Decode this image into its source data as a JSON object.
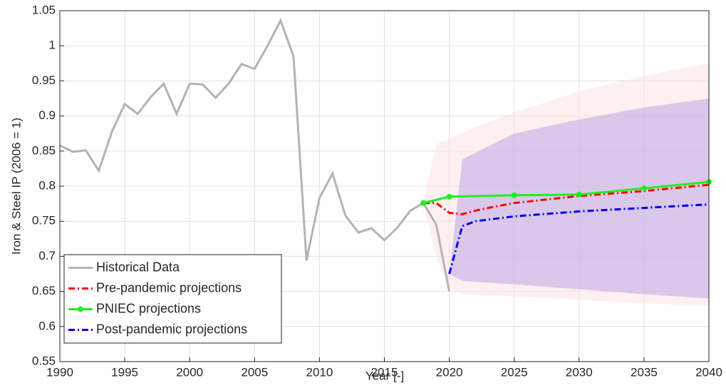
{
  "chart_data": {
    "type": "line",
    "x_label": "Year [-]",
    "y_label": "Iron & Steel IP (2006 = 1)",
    "xlim": [
      1990,
      2040
    ],
    "xticks": [
      1990,
      1995,
      2000,
      2005,
      2010,
      2015,
      2020,
      2025,
      2030,
      2035,
      2040
    ],
    "ylim": [
      0.55,
      1.05
    ],
    "yticks": [
      0.55,
      0.6,
      0.65,
      0.7,
      0.75,
      0.8,
      0.85,
      0.9,
      0.95,
      1,
      1.05
    ],
    "grid": true,
    "legend_position": "lower-left",
    "bands": [
      {
        "color": "#fde3e3",
        "x": [
          2018,
          2019,
          2020,
          2021,
          2025,
          2030,
          2035,
          2040
        ],
        "upper": [
          0.776,
          0.86,
          0.868,
          0.876,
          0.905,
          0.935,
          0.957,
          0.975
        ],
        "lower": [
          0.776,
          0.7,
          0.655,
          0.646,
          0.643,
          0.638,
          0.633,
          0.63
        ]
      },
      {
        "color": "#b9a8e6",
        "x": [
          2020,
          2021,
          2025,
          2030,
          2035,
          2040
        ],
        "upper": [
          0.675,
          0.838,
          0.875,
          0.895,
          0.912,
          0.925
        ],
        "lower": [
          0.675,
          0.665,
          0.66,
          0.653,
          0.646,
          0.64
        ]
      }
    ],
    "series": [
      {
        "name": "Historical Data",
        "color": "#b3b3b3",
        "dash": "solid",
        "marker": false,
        "x": [
          1990,
          1991,
          1992,
          1993,
          1994,
          1995,
          1996,
          1997,
          1998,
          1999,
          2000,
          2001,
          2002,
          2003,
          2004,
          2005,
          2006,
          2007,
          2008,
          2009,
          2010,
          2011,
          2012,
          2013,
          2014,
          2015,
          2016,
          2017,
          2018,
          2019,
          2020
        ],
        "values": [
          0.858,
          0.849,
          0.851,
          0.822,
          0.877,
          0.917,
          0.903,
          0.927,
          0.946,
          0.903,
          0.946,
          0.945,
          0.926,
          0.946,
          0.974,
          0.967,
          1.0,
          1.036,
          0.985,
          0.694,
          0.783,
          0.818,
          0.758,
          0.734,
          0.74,
          0.723,
          0.741,
          0.765,
          0.776,
          0.745,
          0.65
        ]
      },
      {
        "name": "Pre-pandemic projections",
        "color": "#ff0000",
        "dash": "dashdot",
        "marker": false,
        "x": [
          2018,
          2019,
          2020,
          2021,
          2022,
          2023,
          2025,
          2030,
          2035,
          2040
        ],
        "values": [
          0.776,
          0.776,
          0.762,
          0.76,
          0.765,
          0.769,
          0.776,
          0.786,
          0.793,
          0.802
        ]
      },
      {
        "name": "PNIEC projections",
        "color": "#22ee22",
        "dash": "solid",
        "marker": true,
        "x": [
          2018,
          2020,
          2025,
          2030,
          2035,
          2040
        ],
        "values": [
          0.776,
          0.785,
          0.787,
          0.788,
          0.797,
          0.806
        ]
      },
      {
        "name": "Post-pandemic projections",
        "color": "#0000ee",
        "dash": "dashdot",
        "marker": false,
        "x": [
          2020,
          2021,
          2022,
          2025,
          2030,
          2035,
          2040
        ],
        "values": [
          0.675,
          0.743,
          0.75,
          0.757,
          0.764,
          0.769,
          0.774
        ]
      }
    ]
  }
}
